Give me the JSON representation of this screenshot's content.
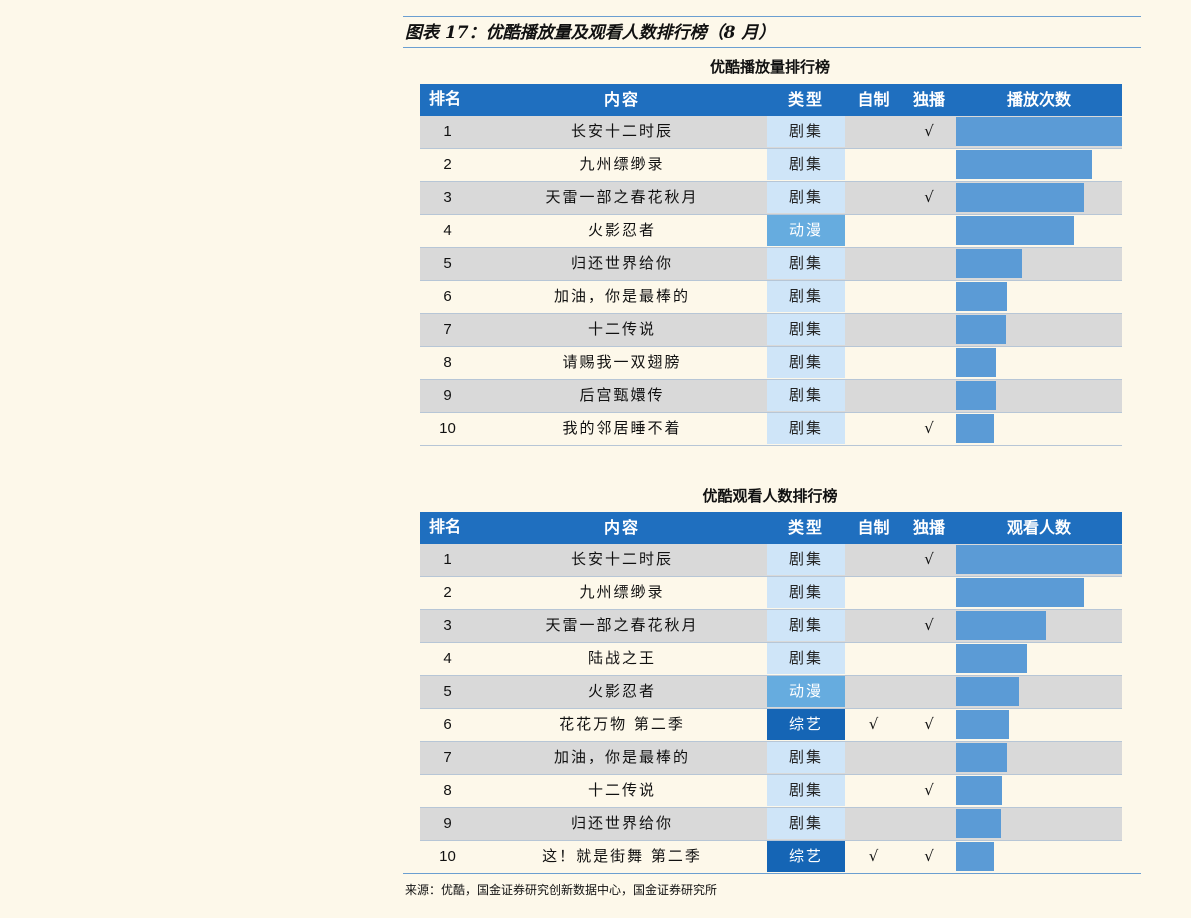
{
  "figure_title": "图表 17：优酷播放量及观看人数排行榜（8 月）",
  "source": "来源：优酷，国金证券研究创新数据中心，国金证券研究所",
  "colors": {
    "header": "#1f6fbf",
    "bar": "#5b9bd6",
    "drama": "#cfe5f8",
    "anime": "#66acdf",
    "variety": "#1565b5"
  },
  "tables": [
    {
      "title": "优酷播放量排行榜",
      "headers": [
        "排名",
        "内容",
        "类型",
        "自制",
        "独播",
        "播放次数"
      ],
      "rows": [
        {
          "rank": "1",
          "content": "长安十二时辰",
          "type": "剧集",
          "self_made": "",
          "exclusive": "√",
          "value": 1.0
        },
        {
          "rank": "2",
          "content": "九州缥缈录",
          "type": "剧集",
          "self_made": "",
          "exclusive": "",
          "value": 0.82
        },
        {
          "rank": "3",
          "content": "天雷一部之春花秋月",
          "type": "剧集",
          "self_made": "",
          "exclusive": "√",
          "value": 0.77
        },
        {
          "rank": "4",
          "content": "火影忍者",
          "type": "动漫",
          "self_made": "",
          "exclusive": "",
          "value": 0.71
        },
        {
          "rank": "5",
          "content": "归还世界给你",
          "type": "剧集",
          "self_made": "",
          "exclusive": "",
          "value": 0.4
        },
        {
          "rank": "6",
          "content": "加油，你是最棒的",
          "type": "剧集",
          "self_made": "",
          "exclusive": "",
          "value": 0.31
        },
        {
          "rank": "7",
          "content": "十二传说",
          "type": "剧集",
          "self_made": "",
          "exclusive": "",
          "value": 0.3
        },
        {
          "rank": "8",
          "content": "请赐我一双翅膀",
          "type": "剧集",
          "self_made": "",
          "exclusive": "",
          "value": 0.24
        },
        {
          "rank": "9",
          "content": "后宫甄嬛传",
          "type": "剧集",
          "self_made": "",
          "exclusive": "",
          "value": 0.24
        },
        {
          "rank": "10",
          "content": "我的邻居睡不着",
          "type": "剧集",
          "self_made": "",
          "exclusive": "√",
          "value": 0.23
        }
      ]
    },
    {
      "title": "优酷观看人数排行榜",
      "headers": [
        "排名",
        "内容",
        "类型",
        "自制",
        "独播",
        "观看人数"
      ],
      "rows": [
        {
          "rank": "1",
          "content": "长安十二时辰",
          "type": "剧集",
          "self_made": "",
          "exclusive": "√",
          "value": 1.0
        },
        {
          "rank": "2",
          "content": "九州缥缈录",
          "type": "剧集",
          "self_made": "",
          "exclusive": "",
          "value": 0.77
        },
        {
          "rank": "3",
          "content": "天雷一部之春花秋月",
          "type": "剧集",
          "self_made": "",
          "exclusive": "√",
          "value": 0.54
        },
        {
          "rank": "4",
          "content": "陆战之王",
          "type": "剧集",
          "self_made": "",
          "exclusive": "",
          "value": 0.43
        },
        {
          "rank": "5",
          "content": "火影忍者",
          "type": "动漫",
          "self_made": "",
          "exclusive": "",
          "value": 0.38
        },
        {
          "rank": "6",
          "content": "花花万物 第二季",
          "type": "综艺",
          "self_made": "√",
          "exclusive": "√",
          "value": 0.32
        },
        {
          "rank": "7",
          "content": "加油，你是最棒的",
          "type": "剧集",
          "self_made": "",
          "exclusive": "",
          "value": 0.31
        },
        {
          "rank": "8",
          "content": "十二传说",
          "type": "剧集",
          "self_made": "",
          "exclusive": "√",
          "value": 0.28
        },
        {
          "rank": "9",
          "content": "归还世界给你",
          "type": "剧集",
          "self_made": "",
          "exclusive": "",
          "value": 0.27
        },
        {
          "rank": "10",
          "content": "这！就是街舞 第二季",
          "type": "综艺",
          "self_made": "√",
          "exclusive": "√",
          "value": 0.23
        }
      ]
    }
  ]
}
